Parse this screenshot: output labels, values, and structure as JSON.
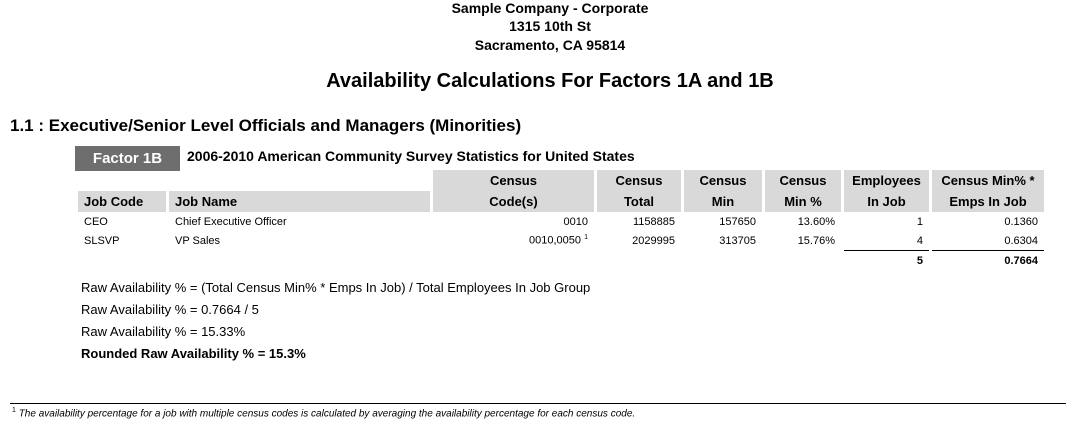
{
  "header": {
    "company": "Sample Company - Corporate",
    "address": "1315 10th St",
    "city": "Sacramento, CA 95814",
    "title": "Availability Calculations For Factors 1A and 1B"
  },
  "section": {
    "title": "1.1 : Executive/Senior Level Officials and Managers (Minorities)",
    "factor_label": "Factor 1B",
    "factor_description": "2006-2010 American Community Survey Statistics for United States"
  },
  "table": {
    "headers": {
      "job_code": "Job Code",
      "job_name": "Job Name",
      "census_codes_1": "Census",
      "census_codes_2": "Code(s)",
      "census_total_1": "Census",
      "census_total_2": "Total",
      "census_min_1": "Census",
      "census_min_2": "Min",
      "census_min_pct_1": "Census",
      "census_min_pct_2": "Min %",
      "employees_1": "Employees",
      "employees_2": "In Job",
      "census_emps_1": "Census Min% *",
      "census_emps_2": "Emps In Job"
    },
    "rows": [
      {
        "job_code": "CEO",
        "job_name": "Chief Executive Officer",
        "census_codes": "0010",
        "footnote_mark": "",
        "census_total": "1158885",
        "census_min": "157650",
        "census_min_pct": "13.60%",
        "employees": "1",
        "census_emps": "0.1360"
      },
      {
        "job_code": "SLSVP",
        "job_name": "VP Sales",
        "census_codes": "0010,0050",
        "footnote_mark": "1",
        "census_total": "2029995",
        "census_min": "313705",
        "census_min_pct": "15.76%",
        "employees": "4",
        "census_emps": "0.6304"
      }
    ],
    "totals": {
      "employees": "5",
      "census_emps": "0.7664"
    }
  },
  "calculation": {
    "formula": "Raw Availability % = (Total Census Min% * Emps In Job) / Total Employees In Job Group",
    "step": "Raw Availability % = 0.7664 / 5",
    "result": "Raw Availability % = 15.33%",
    "rounded": "Rounded Raw Availability % = 15.3%"
  },
  "footnote": {
    "mark": "1",
    "text": "The availability percentage for a job with multiple census codes is calculated by averaging the availability percentage for each census code."
  }
}
